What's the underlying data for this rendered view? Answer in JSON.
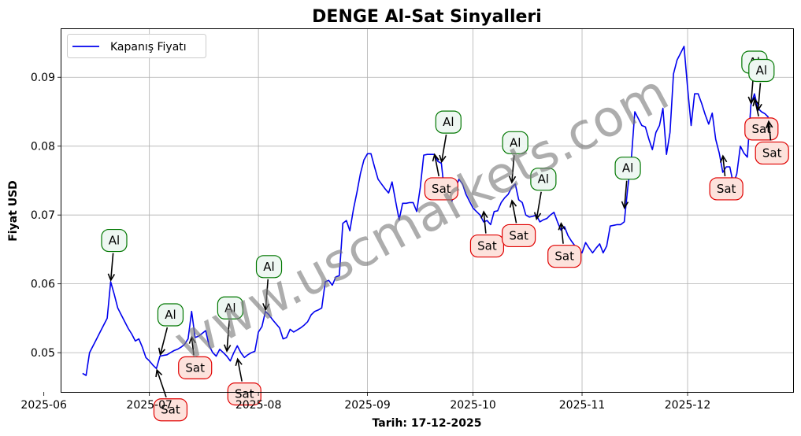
{
  "chart_data": {
    "type": "line",
    "title": "DENGE Al-Sat Sinyalleri",
    "xlabel": "Tarih: 17-12-2025",
    "ylabel": "Fiyat USD",
    "ylim": [
      0.0443,
      0.097
    ],
    "xlim": [
      "2025-06-06",
      "2025-12-31"
    ],
    "grid": true,
    "legend": {
      "position": "upper-left",
      "entries": [
        {
          "label": "Kapanış Fiyatı",
          "color": "#0000ee"
        }
      ]
    },
    "x_ticks": [
      {
        "date": "2025-06-01",
        "label": "2025-06"
      },
      {
        "date": "2025-07-01",
        "label": "2025-07"
      },
      {
        "date": "2025-08-01",
        "label": "2025-08"
      },
      {
        "date": "2025-09-01",
        "label": "2025-09"
      },
      {
        "date": "2025-10-01",
        "label": "2025-10"
      },
      {
        "date": "2025-11-01",
        "label": "2025-11"
      },
      {
        "date": "2025-12-01",
        "label": "2025-12"
      }
    ],
    "y_ticks": [
      {
        "value": 0.05,
        "label": "0.05"
      },
      {
        "value": 0.06,
        "label": "0.06"
      },
      {
        "value": 0.07,
        "label": "0.07"
      },
      {
        "value": 0.08,
        "label": "0.08"
      },
      {
        "value": 0.09,
        "label": "0.09"
      }
    ],
    "series": [
      {
        "name": "Kapanış Fiyatı",
        "color": "#0000ee",
        "points": [
          [
            "2025-06-12",
            0.047
          ],
          [
            "2025-06-13",
            0.0467
          ],
          [
            "2025-06-14",
            0.05
          ],
          [
            "2025-06-15",
            0.051
          ],
          [
            "2025-06-16",
            0.052
          ],
          [
            "2025-06-17",
            0.053
          ],
          [
            "2025-06-18",
            0.054
          ],
          [
            "2025-06-19",
            0.055
          ],
          [
            "2025-06-20",
            0.0603
          ],
          [
            "2025-06-21",
            0.0585
          ],
          [
            "2025-06-22",
            0.0565
          ],
          [
            "2025-06-23",
            0.0555
          ],
          [
            "2025-06-24",
            0.0545
          ],
          [
            "2025-06-25",
            0.0535
          ],
          [
            "2025-06-26",
            0.0527
          ],
          [
            "2025-06-27",
            0.0517
          ],
          [
            "2025-06-28",
            0.052
          ],
          [
            "2025-06-29",
            0.0508
          ],
          [
            "2025-06-30",
            0.0493
          ],
          [
            "2025-07-01",
            0.0488
          ],
          [
            "2025-07-02",
            0.0482
          ],
          [
            "2025-07-03",
            0.0477
          ],
          [
            "2025-07-04",
            0.0495
          ],
          [
            "2025-07-05",
            0.0496
          ],
          [
            "2025-07-06",
            0.0497
          ],
          [
            "2025-07-07",
            0.05
          ],
          [
            "2025-07-08",
            0.0503
          ],
          [
            "2025-07-09",
            0.0505
          ],
          [
            "2025-07-10",
            0.0508
          ],
          [
            "2025-07-11",
            0.0512
          ],
          [
            "2025-07-12",
            0.052
          ],
          [
            "2025-07-13",
            0.056
          ],
          [
            "2025-07-14",
            0.0522
          ],
          [
            "2025-07-15",
            0.0524
          ],
          [
            "2025-07-16",
            0.0528
          ],
          [
            "2025-07-17",
            0.0532
          ],
          [
            "2025-07-18",
            0.051
          ],
          [
            "2025-07-19",
            0.05
          ],
          [
            "2025-07-20",
            0.0495
          ],
          [
            "2025-07-21",
            0.0505
          ],
          [
            "2025-07-22",
            0.05
          ],
          [
            "2025-07-23",
            0.0495
          ],
          [
            "2025-07-24",
            0.0488
          ],
          [
            "2025-07-25",
            0.05
          ],
          [
            "2025-07-26",
            0.051
          ],
          [
            "2025-07-27",
            0.05
          ],
          [
            "2025-07-28",
            0.0493
          ],
          [
            "2025-07-29",
            0.0497
          ],
          [
            "2025-07-30",
            0.05
          ],
          [
            "2025-07-31",
            0.0502
          ],
          [
            "2025-08-01",
            0.053
          ],
          [
            "2025-08-02",
            0.0538
          ],
          [
            "2025-08-03",
            0.056
          ],
          [
            "2025-08-04",
            0.0555
          ],
          [
            "2025-08-05",
            0.0548
          ],
          [
            "2025-08-06",
            0.0542
          ],
          [
            "2025-08-07",
            0.0536
          ],
          [
            "2025-08-08",
            0.052
          ],
          [
            "2025-08-09",
            0.0522
          ],
          [
            "2025-08-10",
            0.0534
          ],
          [
            "2025-08-11",
            0.053
          ],
          [
            "2025-08-12",
            0.0533
          ],
          [
            "2025-08-13",
            0.0536
          ],
          [
            "2025-08-14",
            0.054
          ],
          [
            "2025-08-15",
            0.0545
          ],
          [
            "2025-08-16",
            0.0555
          ],
          [
            "2025-08-17",
            0.056
          ],
          [
            "2025-08-18",
            0.0562
          ],
          [
            "2025-08-19",
            0.0565
          ],
          [
            "2025-08-20",
            0.0603
          ],
          [
            "2025-08-21",
            0.0605
          ],
          [
            "2025-08-22",
            0.0598
          ],
          [
            "2025-08-23",
            0.061
          ],
          [
            "2025-08-24",
            0.0612
          ],
          [
            "2025-08-25",
            0.0688
          ],
          [
            "2025-08-26",
            0.0692
          ],
          [
            "2025-08-27",
            0.0677
          ],
          [
            "2025-08-28",
            0.0708
          ],
          [
            "2025-08-29",
            0.0733
          ],
          [
            "2025-08-30",
            0.076
          ],
          [
            "2025-08-31",
            0.078
          ],
          [
            "2025-09-01",
            0.0789
          ],
          [
            "2025-09-02",
            0.0789
          ],
          [
            "2025-09-03",
            0.077
          ],
          [
            "2025-09-04",
            0.0752
          ],
          [
            "2025-09-05",
            0.0745
          ],
          [
            "2025-09-06",
            0.0738
          ],
          [
            "2025-09-07",
            0.0732
          ],
          [
            "2025-09-08",
            0.0748
          ],
          [
            "2025-09-09",
            0.072
          ],
          [
            "2025-09-10",
            0.0693
          ],
          [
            "2025-09-11",
            0.0717
          ],
          [
            "2025-09-12",
            0.0717
          ],
          [
            "2025-09-13",
            0.0718
          ],
          [
            "2025-09-14",
            0.0718
          ],
          [
            "2025-09-15",
            0.0705
          ],
          [
            "2025-09-16",
            0.074
          ],
          [
            "2025-09-17",
            0.0787
          ],
          [
            "2025-09-18",
            0.0788
          ],
          [
            "2025-09-19",
            0.0788
          ],
          [
            "2025-09-20",
            0.0788
          ],
          [
            "2025-09-21",
            0.0778
          ],
          [
            "2025-09-22",
            0.0775
          ],
          [
            "2025-09-23",
            0.0728
          ],
          [
            "2025-09-24",
            0.0735
          ],
          [
            "2025-09-25",
            0.072
          ],
          [
            "2025-09-26",
            0.0738
          ],
          [
            "2025-09-27",
            0.0752
          ],
          [
            "2025-09-28",
            0.0745
          ],
          [
            "2025-09-29",
            0.073
          ],
          [
            "2025-09-30",
            0.072
          ],
          [
            "2025-10-01",
            0.071
          ],
          [
            "2025-10-02",
            0.0705
          ],
          [
            "2025-10-03",
            0.07
          ],
          [
            "2025-10-04",
            0.069
          ],
          [
            "2025-10-05",
            0.0692
          ],
          [
            "2025-10-06",
            0.0686
          ],
          [
            "2025-10-07",
            0.0705
          ],
          [
            "2025-10-08",
            0.0706
          ],
          [
            "2025-10-09",
            0.0718
          ],
          [
            "2025-10-10",
            0.0725
          ],
          [
            "2025-10-11",
            0.073
          ],
          [
            "2025-10-12",
            0.074
          ],
          [
            "2025-10-13",
            0.0745
          ],
          [
            "2025-10-14",
            0.0722
          ],
          [
            "2025-10-15",
            0.0718
          ],
          [
            "2025-10-16",
            0.07
          ],
          [
            "2025-10-17",
            0.0697
          ],
          [
            "2025-10-18",
            0.0698
          ],
          [
            "2025-10-19",
            0.07
          ],
          [
            "2025-10-20",
            0.069
          ],
          [
            "2025-10-21",
            0.0693
          ],
          [
            "2025-10-22",
            0.0695
          ],
          [
            "2025-10-23",
            0.07
          ],
          [
            "2025-10-24",
            0.0704
          ],
          [
            "2025-10-25",
            0.069
          ],
          [
            "2025-10-26",
            0.0678
          ],
          [
            "2025-10-27",
            0.0683
          ],
          [
            "2025-10-28",
            0.067
          ],
          [
            "2025-10-29",
            0.0662
          ],
          [
            "2025-10-30",
            0.0655
          ],
          [
            "2025-10-31",
            0.065
          ],
          [
            "2025-11-01",
            0.0645
          ],
          [
            "2025-11-02",
            0.066
          ],
          [
            "2025-11-03",
            0.0652
          ],
          [
            "2025-11-04",
            0.0645
          ],
          [
            "2025-11-05",
            0.0652
          ],
          [
            "2025-11-06",
            0.0658
          ],
          [
            "2025-11-07",
            0.0645
          ],
          [
            "2025-11-08",
            0.0655
          ],
          [
            "2025-11-09",
            0.0684
          ],
          [
            "2025-11-10",
            0.0685
          ],
          [
            "2025-11-11",
            0.0686
          ],
          [
            "2025-11-12",
            0.0686
          ],
          [
            "2025-11-13",
            0.069
          ],
          [
            "2025-11-14",
            0.074
          ],
          [
            "2025-11-15",
            0.078
          ],
          [
            "2025-11-16",
            0.085
          ],
          [
            "2025-11-17",
            0.084
          ],
          [
            "2025-11-18",
            0.083
          ],
          [
            "2025-11-19",
            0.0828
          ],
          [
            "2025-11-20",
            0.081
          ],
          [
            "2025-11-21",
            0.0795
          ],
          [
            "2025-11-22",
            0.082
          ],
          [
            "2025-11-23",
            0.083
          ],
          [
            "2025-11-24",
            0.0855
          ],
          [
            "2025-11-25",
            0.0788
          ],
          [
            "2025-11-26",
            0.082
          ],
          [
            "2025-11-27",
            0.0905
          ],
          [
            "2025-11-28",
            0.0925
          ],
          [
            "2025-11-29",
            0.0935
          ],
          [
            "2025-11-30",
            0.0945
          ],
          [
            "2025-12-01",
            0.0885
          ],
          [
            "2025-12-02",
            0.083
          ],
          [
            "2025-12-03",
            0.0876
          ],
          [
            "2025-12-04",
            0.0876
          ],
          [
            "2025-12-05",
            0.0862
          ],
          [
            "2025-12-06",
            0.0846
          ],
          [
            "2025-12-07",
            0.0832
          ],
          [
            "2025-12-08",
            0.0848
          ],
          [
            "2025-12-09",
            0.081
          ],
          [
            "2025-12-10",
            0.079
          ],
          [
            "2025-12-11",
            0.0762
          ],
          [
            "2025-12-12",
            0.077
          ],
          [
            "2025-12-13",
            0.077
          ],
          [
            "2025-12-14",
            0.0745
          ],
          [
            "2025-12-15",
            0.076
          ],
          [
            "2025-12-16",
            0.08
          ],
          [
            "2025-12-17",
            0.079
          ],
          [
            "2025-12-18",
            0.0784
          ],
          [
            "2025-12-19",
            0.086
          ],
          [
            "2025-12-20",
            0.0876
          ],
          [
            "2025-12-21",
            0.0855
          ],
          [
            "2025-12-22",
            0.085
          ],
          [
            "2025-12-23",
            0.0847
          ],
          [
            "2025-12-24",
            0.0842
          ]
        ]
      }
    ],
    "signals": [
      {
        "type": "Al",
        "date": "2025-06-20",
        "price": 0.0603,
        "label_date": "2025-06-21",
        "label_price": 0.0663
      },
      {
        "type": "Al",
        "date": "2025-07-04",
        "price": 0.0495,
        "label_date": "2025-07-07",
        "label_price": 0.0555
      },
      {
        "type": "Sat",
        "date": "2025-07-03",
        "price": 0.0477,
        "label_date": "2025-07-07",
        "label_price": 0.0417
      },
      {
        "type": "Sat",
        "date": "2025-07-13",
        "price": 0.0525,
        "label_date": "2025-07-14",
        "label_price": 0.0478
      },
      {
        "type": "Al",
        "date": "2025-07-23",
        "price": 0.05,
        "label_date": "2025-07-24",
        "label_price": 0.0565
      },
      {
        "type": "Sat",
        "date": "2025-07-26",
        "price": 0.0493,
        "label_date": "2025-07-28",
        "label_price": 0.044
      },
      {
        "type": "Al",
        "date": "2025-08-03",
        "price": 0.056,
        "label_date": "2025-08-04",
        "label_price": 0.0625
      },
      {
        "type": "Sat",
        "date": "2025-09-20",
        "price": 0.079,
        "label_date": "2025-09-22",
        "label_price": 0.0738
      },
      {
        "type": "Al",
        "date": "2025-09-22",
        "price": 0.0775,
        "label_date": "2025-09-24",
        "label_price": 0.0835
      },
      {
        "type": "Sat",
        "date": "2025-10-04",
        "price": 0.0707,
        "label_date": "2025-10-05",
        "label_price": 0.0655
      },
      {
        "type": "Al",
        "date": "2025-10-12",
        "price": 0.0745,
        "label_date": "2025-10-13",
        "label_price": 0.0805
      },
      {
        "type": "Sat",
        "date": "2025-10-12",
        "price": 0.0723,
        "label_date": "2025-10-14",
        "label_price": 0.067
      },
      {
        "type": "Al",
        "date": "2025-10-19",
        "price": 0.0692,
        "label_date": "2025-10-21",
        "label_price": 0.0752
      },
      {
        "type": "Sat",
        "date": "2025-10-26",
        "price": 0.069,
        "label_date": "2025-10-27",
        "label_price": 0.064
      },
      {
        "type": "Al",
        "date": "2025-11-13",
        "price": 0.0708,
        "label_date": "2025-11-14",
        "label_price": 0.0768
      },
      {
        "type": "Sat",
        "date": "2025-12-11",
        "price": 0.0788,
        "label_date": "2025-12-12",
        "label_price": 0.0738
      },
      {
        "type": "Al",
        "date": "2025-12-19",
        "price": 0.086,
        "label_date": "2025-12-20",
        "label_price": 0.0922
      },
      {
        "type": "Al",
        "date": "2025-12-21",
        "price": 0.085,
        "label_date": "2025-12-22",
        "label_price": 0.091
      },
      {
        "type": "Sat",
        "date": "2025-12-20",
        "price": 0.087,
        "label_date": "2025-12-22",
        "label_price": 0.0825
      },
      {
        "type": "Sat",
        "date": "2025-12-24",
        "price": 0.0838,
        "label_date": "2025-12-25",
        "label_price": 0.079
      }
    ],
    "signal_colors": {
      "Al": {
        "border": "#007700",
        "fill": "#eef7f2"
      },
      "Sat": {
        "border": "#e00000",
        "fill": "#fde2dc"
      }
    },
    "watermark": "www.uscmarkets.com"
  }
}
